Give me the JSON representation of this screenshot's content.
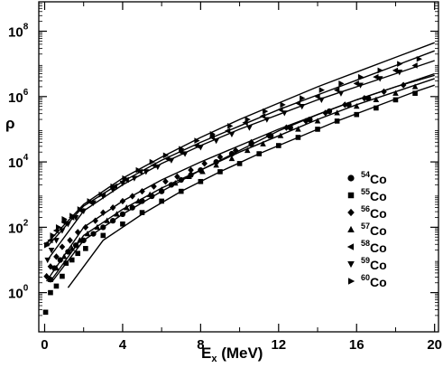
{
  "chart_data": {
    "type": "scatter",
    "title": "",
    "xlabel": {
      "main": "E",
      "sub": "x",
      "unit": " (MeV)"
    },
    "ylabel": "ρ",
    "y_scale": "log",
    "xlim": [
      -0.3,
      20.2
    ],
    "ylim": [
      -1.2,
      8.9
    ],
    "x_ticks": [
      0,
      4,
      8,
      12,
      16,
      20
    ],
    "y_ticks": [
      {
        "exp": 0,
        "base": "10",
        "sup": "0"
      },
      {
        "exp": 2,
        "base": "10",
        "sup": "2"
      },
      {
        "exp": 4,
        "base": "10",
        "sup": "4"
      },
      {
        "exp": 6,
        "base": "10",
        "sup": "6"
      },
      {
        "exp": 8,
        "base": "10",
        "sup": "8"
      }
    ],
    "grid": false,
    "legend_position": "right",
    "series": [
      {
        "name": "Co",
        "mass": "54",
        "marker": "circle",
        "points": [
          [
            0.3,
            0.4
          ],
          [
            0.5,
            0.75
          ],
          [
            0.8,
            1.0
          ],
          [
            1.2,
            1.25
          ],
          [
            1.6,
            1.45
          ],
          [
            2.0,
            1.6
          ],
          [
            2.5,
            1.8
          ],
          [
            3.0,
            2.0
          ],
          [
            3.5,
            2.2
          ],
          [
            4.0,
            2.4
          ],
          [
            4.5,
            2.6
          ],
          [
            5.0,
            2.8
          ],
          [
            5.5,
            2.95
          ],
          [
            6.0,
            3.1
          ],
          [
            6.5,
            3.3
          ],
          [
            7.0,
            3.45
          ],
          [
            7.5,
            3.6
          ],
          [
            8.0,
            3.75
          ],
          [
            8.8,
            4.0
          ],
          [
            9.6,
            4.25
          ],
          [
            10.6,
            4.55
          ],
          [
            11.6,
            4.8
          ],
          [
            12.6,
            5.05
          ],
          [
            13.6,
            5.3
          ],
          [
            14.6,
            5.55
          ],
          [
            15.6,
            5.75
          ],
          [
            16.6,
            5.95
          ]
        ],
        "curve": [
          [
            0.4,
            0.35
          ],
          [
            2,
            1.6
          ],
          [
            4,
            2.4
          ],
          [
            6,
            3.1
          ],
          [
            8,
            3.75
          ],
          [
            10,
            4.35
          ],
          [
            12,
            4.95
          ],
          [
            14,
            5.45
          ],
          [
            16,
            5.9
          ],
          [
            18,
            6.3
          ],
          [
            20,
            6.65
          ]
        ]
      },
      {
        "name": "Co",
        "mass": "55",
        "marker": "square",
        "points": [
          [
            0.05,
            -0.6
          ],
          [
            0.3,
            0.0
          ],
          [
            0.6,
            0.2
          ],
          [
            0.9,
            0.5
          ],
          [
            1.1,
            0.9
          ],
          [
            1.4,
            1.0
          ],
          [
            1.7,
            1.2
          ],
          [
            2.1,
            1.35
          ],
          [
            3.0,
            1.75
          ],
          [
            4.0,
            2.1
          ],
          [
            5.0,
            2.45
          ],
          [
            6.0,
            2.8
          ],
          [
            7.0,
            3.1
          ],
          [
            8.0,
            3.4
          ],
          [
            9.0,
            3.7
          ],
          [
            10.0,
            3.95
          ],
          [
            11.0,
            4.25
          ],
          [
            12.0,
            4.5
          ],
          [
            13.0,
            4.75
          ],
          [
            14.0,
            5.0
          ],
          [
            15.0,
            5.25
          ],
          [
            16.0,
            5.45
          ],
          [
            17.0,
            5.65
          ],
          [
            18.0,
            5.9
          ],
          [
            19.0,
            6.1
          ]
        ],
        "curve": [
          [
            1.2,
            0.15
          ],
          [
            3,
            1.6
          ],
          [
            5,
            2.4
          ],
          [
            7,
            3.1
          ],
          [
            9,
            3.7
          ],
          [
            11,
            4.25
          ],
          [
            13,
            4.75
          ],
          [
            15,
            5.25
          ],
          [
            17,
            5.7
          ],
          [
            19,
            6.15
          ],
          [
            20,
            6.35
          ]
        ]
      },
      {
        "name": "Co",
        "mass": "56",
        "marker": "diamond",
        "points": [
          [
            0.1,
            0.5
          ],
          [
            0.3,
            0.8
          ],
          [
            0.6,
            1.1
          ],
          [
            0.9,
            1.4
          ],
          [
            1.3,
            1.6
          ],
          [
            1.7,
            1.85
          ],
          [
            2.1,
            2.0
          ],
          [
            2.6,
            2.2
          ],
          [
            3.0,
            2.45
          ],
          [
            3.5,
            2.6
          ],
          [
            4.0,
            2.8
          ],
          [
            4.5,
            2.95
          ],
          [
            5.0,
            3.1
          ],
          [
            5.6,
            3.25
          ],
          [
            6.2,
            3.4
          ],
          [
            6.8,
            3.55
          ],
          [
            7.5,
            3.75
          ],
          [
            8.2,
            3.95
          ],
          [
            9.0,
            4.15
          ],
          [
            9.8,
            4.35
          ],
          [
            10.6,
            4.6
          ],
          [
            11.5,
            4.8
          ],
          [
            12.4,
            5.05
          ],
          [
            13.4,
            5.25
          ],
          [
            14.4,
            5.5
          ],
          [
            15.4,
            5.75
          ],
          [
            16.4,
            5.95
          ],
          [
            17.4,
            6.15
          ],
          [
            18.4,
            6.35
          ]
        ],
        "curve": [
          [
            0.1,
            0.35
          ],
          [
            2,
            2.0
          ],
          [
            4,
            2.8
          ],
          [
            6,
            3.45
          ],
          [
            8,
            4.0
          ],
          [
            10,
            4.5
          ],
          [
            12,
            5.0
          ],
          [
            14,
            5.45
          ],
          [
            16,
            5.9
          ],
          [
            18,
            6.3
          ],
          [
            20,
            6.7
          ]
        ]
      },
      {
        "name": "Co",
        "mass": "57",
        "marker": "triangle-up",
        "points": [
          [
            0.3,
            0.4
          ],
          [
            0.6,
            0.75
          ],
          [
            1.0,
            1.1
          ],
          [
            1.4,
            1.35
          ],
          [
            1.8,
            1.6
          ],
          [
            2.2,
            1.8
          ],
          [
            2.7,
            2.0
          ],
          [
            3.2,
            2.2
          ],
          [
            3.7,
            2.4
          ],
          [
            4.2,
            2.6
          ],
          [
            4.8,
            2.8
          ],
          [
            5.4,
            3.0
          ],
          [
            6.0,
            3.15
          ],
          [
            6.7,
            3.35
          ],
          [
            7.4,
            3.55
          ],
          [
            8.1,
            3.7
          ],
          [
            8.8,
            3.9
          ],
          [
            9.6,
            4.1
          ],
          [
            10.4,
            4.35
          ],
          [
            11.2,
            4.55
          ],
          [
            12.1,
            4.8
          ],
          [
            13.0,
            5.0
          ],
          [
            14.0,
            5.25
          ],
          [
            15.0,
            5.5
          ],
          [
            16.0,
            5.7
          ],
          [
            17.0,
            5.9
          ],
          [
            18.0,
            6.1
          ],
          [
            19.0,
            6.3
          ]
        ],
        "curve": [
          [
            0.3,
            0.35
          ],
          [
            2,
            1.75
          ],
          [
            4,
            2.55
          ],
          [
            6,
            3.2
          ],
          [
            8,
            3.75
          ],
          [
            10,
            4.3
          ],
          [
            12,
            4.8
          ],
          [
            14,
            5.3
          ],
          [
            16,
            5.75
          ],
          [
            18,
            6.15
          ],
          [
            20,
            6.55
          ]
        ]
      },
      {
        "name": "Co",
        "mass": "58",
        "marker": "triangle-left",
        "points": [
          [
            0.1,
            1.5
          ],
          [
            0.3,
            1.6
          ],
          [
            0.6,
            1.9
          ],
          [
            1.0,
            2.15
          ],
          [
            1.4,
            2.3
          ],
          [
            1.9,
            2.5
          ],
          [
            2.4,
            2.75
          ],
          [
            3.0,
            3.0
          ],
          [
            3.6,
            3.25
          ],
          [
            4.2,
            3.45
          ],
          [
            4.9,
            3.7
          ],
          [
            5.6,
            3.9
          ],
          [
            6.3,
            4.1
          ],
          [
            7.0,
            4.3
          ],
          [
            7.8,
            4.5
          ],
          [
            8.6,
            4.75
          ],
          [
            9.4,
            4.95
          ],
          [
            10.3,
            5.2
          ],
          [
            11.2,
            5.4
          ],
          [
            12.1,
            5.6
          ],
          [
            13.0,
            5.8
          ],
          [
            14.0,
            6.0
          ],
          [
            15.0,
            6.2
          ],
          [
            16.0,
            6.4
          ],
          [
            17.0,
            6.6
          ],
          [
            18.0,
            6.8
          ],
          [
            19.0,
            6.95
          ]
        ],
        "curve": [
          [
            0.2,
            1.45
          ],
          [
            2,
            2.65
          ],
          [
            4,
            3.4
          ],
          [
            6,
            4.05
          ],
          [
            8,
            4.6
          ],
          [
            10,
            5.1
          ],
          [
            12,
            5.6
          ],
          [
            14,
            6.05
          ],
          [
            16,
            6.5
          ],
          [
            18,
            6.95
          ],
          [
            20,
            7.4
          ]
        ]
      },
      {
        "name": "Co",
        "mass": "59",
        "marker": "triangle-down",
        "points": [
          [
            0.15,
            1.0
          ],
          [
            0.35,
            1.3
          ],
          [
            0.6,
            1.6
          ],
          [
            0.9,
            1.9
          ],
          [
            1.2,
            2.1
          ],
          [
            1.6,
            2.3
          ],
          [
            2.0,
            2.5
          ],
          [
            2.5,
            2.75
          ],
          [
            3.0,
            2.95
          ],
          [
            3.5,
            3.15
          ],
          [
            4.0,
            3.35
          ],
          [
            4.6,
            3.5
          ],
          [
            5.2,
            3.7
          ],
          [
            5.8,
            3.85
          ],
          [
            6.5,
            4.05
          ],
          [
            7.2,
            4.25
          ],
          [
            8.0,
            4.45
          ],
          [
            8.8,
            4.65
          ],
          [
            9.6,
            4.85
          ],
          [
            10.5,
            5.05
          ],
          [
            11.4,
            5.3
          ],
          [
            12.3,
            5.5
          ],
          [
            13.2,
            5.7
          ],
          [
            14.2,
            5.9
          ],
          [
            15.2,
            6.1
          ],
          [
            16.2,
            6.35
          ],
          [
            17.2,
            6.55
          ],
          [
            18.2,
            6.75
          ]
        ],
        "curve": [
          [
            0.15,
            1.0
          ],
          [
            2,
            2.5
          ],
          [
            4,
            3.3
          ],
          [
            6,
            3.95
          ],
          [
            8,
            4.5
          ],
          [
            10,
            5.0
          ],
          [
            12,
            5.45
          ],
          [
            14,
            5.9
          ],
          [
            16,
            6.3
          ],
          [
            18,
            6.7
          ],
          [
            20,
            7.1
          ]
        ]
      },
      {
        "name": "Co",
        "mass": "60",
        "marker": "triangle-right",
        "points": [
          [
            0.1,
            1.45
          ],
          [
            0.4,
            1.75
          ],
          [
            0.7,
            2.0
          ],
          [
            1.0,
            2.25
          ],
          [
            1.4,
            2.35
          ],
          [
            1.8,
            2.55
          ],
          [
            2.3,
            2.8
          ],
          [
            2.9,
            3.0
          ],
          [
            3.5,
            3.25
          ],
          [
            4.1,
            3.5
          ],
          [
            4.8,
            3.75
          ],
          [
            5.5,
            4.0
          ],
          [
            6.2,
            4.2
          ],
          [
            7.0,
            4.4
          ],
          [
            7.8,
            4.65
          ],
          [
            8.6,
            4.85
          ],
          [
            9.5,
            5.1
          ],
          [
            10.4,
            5.3
          ],
          [
            11.3,
            5.55
          ],
          [
            12.2,
            5.75
          ],
          [
            13.2,
            5.95
          ],
          [
            14.2,
            6.2
          ],
          [
            15.2,
            6.4
          ],
          [
            16.2,
            6.6
          ],
          [
            17.2,
            6.8
          ],
          [
            18.2,
            7.0
          ],
          [
            19.2,
            7.15
          ]
        ],
        "curve": [
          [
            0.1,
            1.5
          ],
          [
            2,
            2.7
          ],
          [
            4,
            3.5
          ],
          [
            6,
            4.15
          ],
          [
            8,
            4.75
          ],
          [
            10,
            5.3
          ],
          [
            12,
            5.8
          ],
          [
            14,
            6.3
          ],
          [
            16,
            6.75
          ],
          [
            18,
            7.2
          ],
          [
            20,
            7.65
          ]
        ]
      }
    ]
  }
}
